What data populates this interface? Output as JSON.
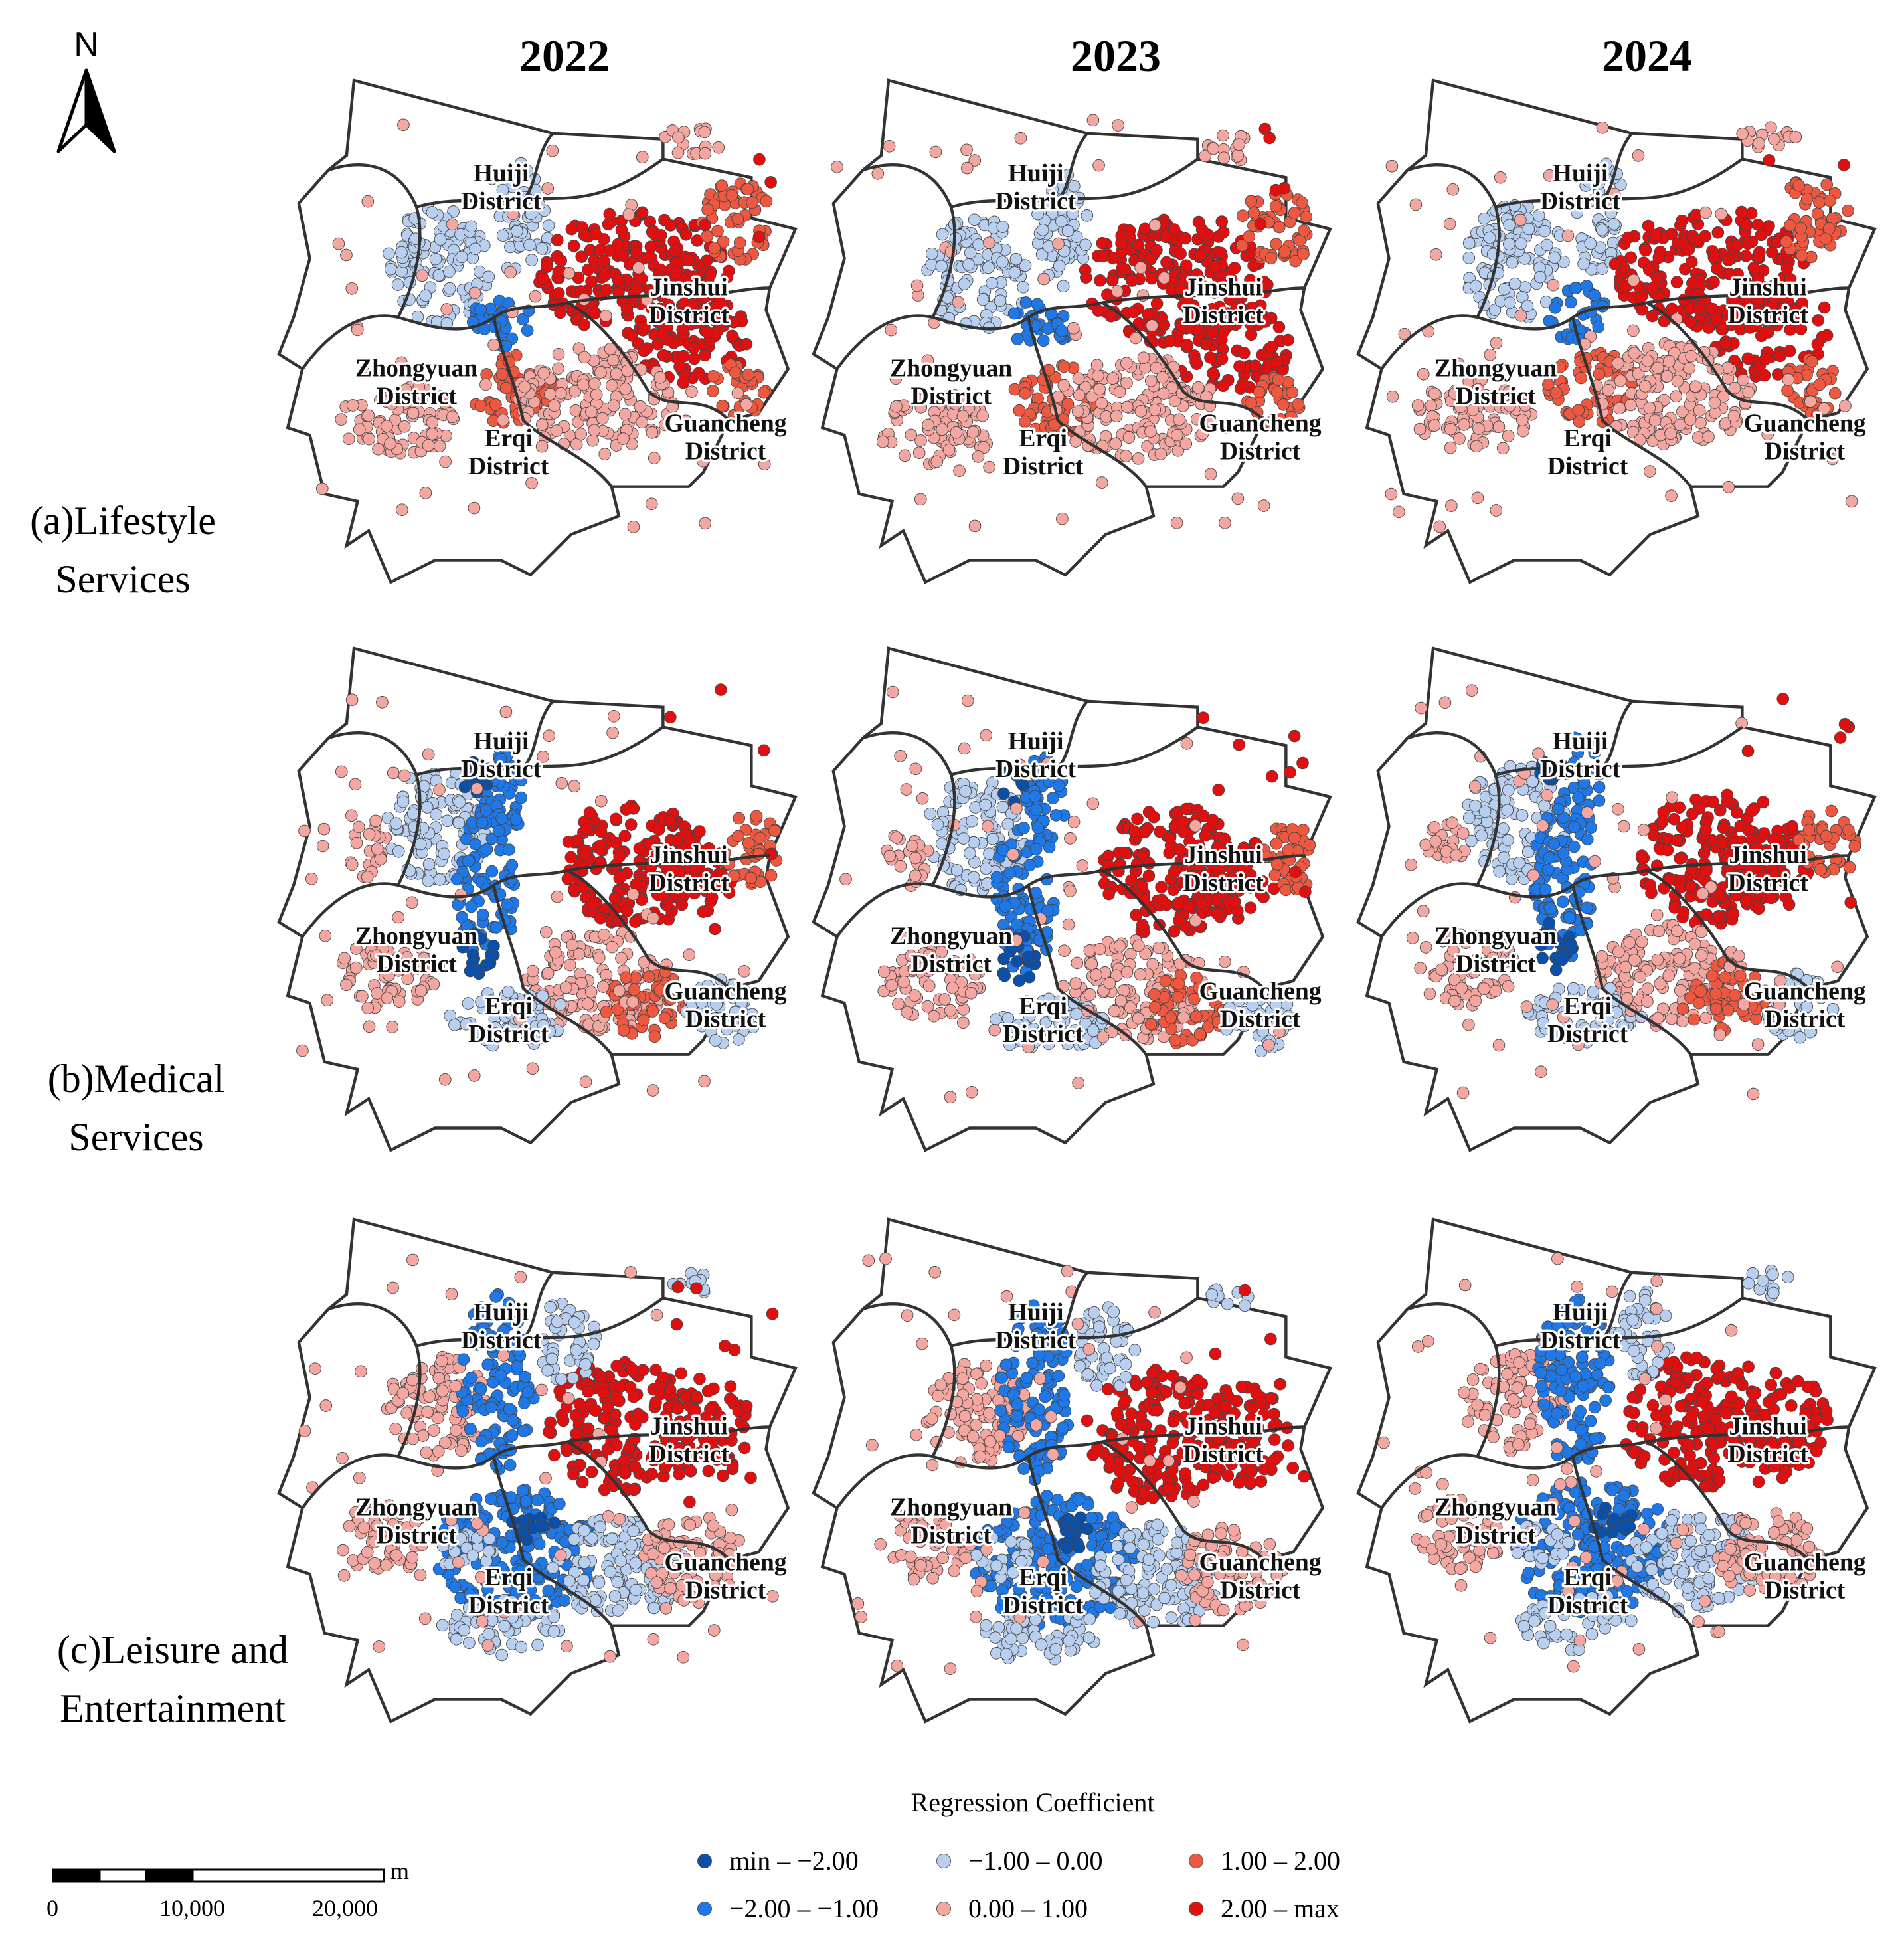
{
  "years": [
    "2022",
    "2023",
    "2024"
  ],
  "rows": [
    {
      "label_line1": "(a)Lifestyle",
      "label_line2": "Services"
    },
    {
      "label_line1": "(b)Medical",
      "label_line2": "Services"
    },
    {
      "label_line1": "(c)Leisure and",
      "label_line2": "Entertainment"
    }
  ],
  "north_arrow": {
    "label": "N"
  },
  "districts": [
    {
      "line1": "Huiji",
      "line2": "District"
    },
    {
      "line1": "Jinshui",
      "line2": "District"
    },
    {
      "line1": "Zhongyuan",
      "line2": "District"
    },
    {
      "line1": "Erqi",
      "line2": "District"
    },
    {
      "line1": "Guancheng",
      "line2": "District"
    }
  ],
  "legend": {
    "title": "Regression Coefficient",
    "classes": [
      {
        "label": "min – −2.00",
        "color": "#0b4fa8"
      },
      {
        "label": "−2.00 – −1.00",
        "color": "#1f78e6"
      },
      {
        "label": "−1.00 – 0.00",
        "color": "#b8cff0"
      },
      {
        "label": "0.00 – 1.00",
        "color": "#f4a6a0"
      },
      {
        "label": "1.00 – 2.00",
        "color": "#ee5840"
      },
      {
        "label": "2.00 – max",
        "color": "#e01010"
      }
    ]
  },
  "scale_bar": {
    "unit": "m",
    "ticks": [
      "0",
      "10,000",
      "20,000"
    ]
  }
}
